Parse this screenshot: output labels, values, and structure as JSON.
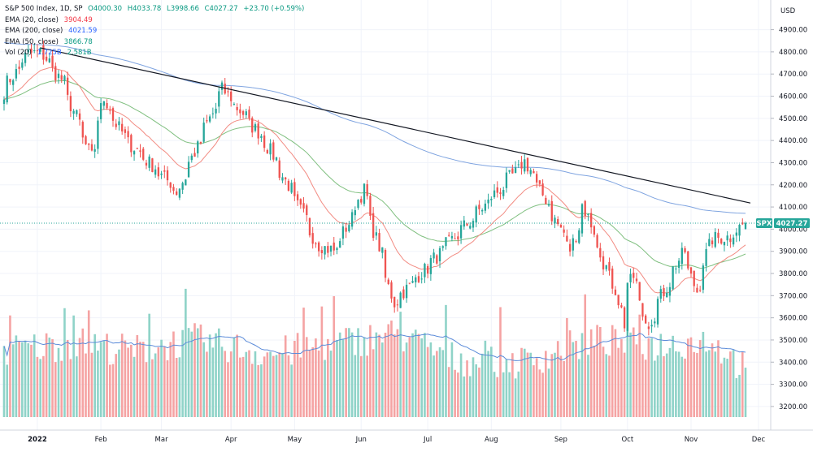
{
  "header": {
    "symbol_line": "S&P 500 Index, 1D, SP",
    "ohlc": {
      "open": "O4000.30",
      "high": "H4033.78",
      "low": "L3998.66",
      "close": "C4027.27",
      "change": "+23.70 (+0.59%)"
    },
    "indicators": [
      {
        "label": "EMA (20, close)",
        "value": "3904.49",
        "color": "#f23645"
      },
      {
        "label": "EMA (200, close)",
        "value": "4021.59",
        "color": "#2962ff"
      },
      {
        "label": "EMA (50, close)",
        "value": "3866.78",
        "color": "#089981"
      },
      {
        "label": "Vol (20)",
        "value": "1.725B",
        "value2": "2.581B",
        "color": "#2962ff"
      }
    ]
  },
  "axis": {
    "currency": "USD",
    "symbol_tag": "SPX",
    "last_price_tag": "4027.27"
  },
  "colors": {
    "up": "#26a69a",
    "down": "#ef5350",
    "vol_up": "#8fd3c8",
    "vol_down": "#f5a3a3",
    "ema20": "#f28b82",
    "ema50": "#7fbf7f",
    "ema200": "#7fa4e0",
    "trendline": "#131722",
    "vol_ma": "#5b8bd9",
    "price_tag": "#26a69a"
  },
  "chart_data": {
    "type": "candlestick",
    "y_ticks": [
      "4900.00",
      "4800.00",
      "4700.00",
      "4600.00",
      "4500.00",
      "4400.00",
      "4300.00",
      "4200.00",
      "4100.00",
      "4000.00",
      "3900.00",
      "3800.00",
      "3700.00",
      "3600.00",
      "3500.00",
      "3400.00",
      "3300.00",
      "3200.00"
    ],
    "ylim": [
      3130,
      4990
    ],
    "x_ticks": [
      {
        "label": "2022",
        "date": "2022-01-03"
      },
      {
        "label": "Feb",
        "date": "2022-02-01"
      },
      {
        "label": "Mar",
        "date": "2022-03-01"
      },
      {
        "label": "Apr",
        "date": "2022-04-01"
      },
      {
        "label": "May",
        "date": "2022-05-02"
      },
      {
        "label": "Jun",
        "date": "2022-06-01"
      },
      {
        "label": "Jul",
        "date": "2022-07-01"
      },
      {
        "label": "Aug",
        "date": "2022-08-01"
      },
      {
        "label": "Sep",
        "date": "2022-09-01"
      },
      {
        "label": "Oct",
        "date": "2022-10-03"
      },
      {
        "label": "Nov",
        "date": "2022-11-01"
      },
      {
        "label": "Dec",
        "date": "2022-12-01"
      }
    ],
    "last_close": 4027.27,
    "trendline": [
      {
        "date": "2022-01-04",
        "value": 4818
      },
      {
        "date": "2022-11-28",
        "value": 4118
      }
    ],
    "close_anchors": [
      {
        "date": "2021-12-17",
        "value": 4620
      },
      {
        "date": "2021-12-29",
        "value": 4793
      },
      {
        "date": "2022-01-04",
        "value": 4796
      },
      {
        "date": "2022-01-14",
        "value": 4662
      },
      {
        "date": "2022-01-27",
        "value": 4326
      },
      {
        "date": "2022-02-02",
        "value": 4589
      },
      {
        "date": "2022-02-11",
        "value": 4418
      },
      {
        "date": "2022-02-24",
        "value": 4289
      },
      {
        "date": "2022-03-08",
        "value": 4170
      },
      {
        "date": "2022-03-29",
        "value": 4631
      },
      {
        "date": "2022-04-18",
        "value": 4391
      },
      {
        "date": "2022-05-12",
        "value": 3930
      },
      {
        "date": "2022-05-20",
        "value": 3901
      },
      {
        "date": "2022-06-02",
        "value": 4176
      },
      {
        "date": "2022-06-16",
        "value": 3667
      },
      {
        "date": "2022-07-01",
        "value": 3825
      },
      {
        "date": "2022-08-16",
        "value": 4305
      },
      {
        "date": "2022-09-06",
        "value": 3908
      },
      {
        "date": "2022-09-12",
        "value": 4110
      },
      {
        "date": "2022-09-30",
        "value": 3586
      },
      {
        "date": "2022-10-04",
        "value": 3791
      },
      {
        "date": "2022-10-12",
        "value": 3577
      },
      {
        "date": "2022-10-28",
        "value": 3901
      },
      {
        "date": "2022-11-03",
        "value": 3720
      },
      {
        "date": "2022-11-10",
        "value": 3956
      },
      {
        "date": "2022-11-18",
        "value": 3965
      },
      {
        "date": "2022-11-25",
        "value": 4027.27
      }
    ],
    "volume_anchors": [
      {
        "date": "2021-12-17",
        "value": 2.3
      },
      {
        "date": "2022-01-20",
        "value": 2.6
      },
      {
        "date": "2022-02-15",
        "value": 2.3
      },
      {
        "date": "2022-03-15",
        "value": 2.7
      },
      {
        "date": "2022-04-20",
        "value": 2.2
      },
      {
        "date": "2022-05-15",
        "value": 2.5
      },
      {
        "date": "2022-06-17",
        "value": 2.9
      },
      {
        "date": "2022-07-15",
        "value": 2.0
      },
      {
        "date": "2022-08-15",
        "value": 1.9
      },
      {
        "date": "2022-09-16",
        "value": 2.7
      },
      {
        "date": "2022-10-15",
        "value": 2.5
      },
      {
        "date": "2022-11-10",
        "value": 2.7
      },
      {
        "date": "2022-11-25",
        "value": 1.725
      }
    ],
    "volume_scale_max": 3.0
  }
}
